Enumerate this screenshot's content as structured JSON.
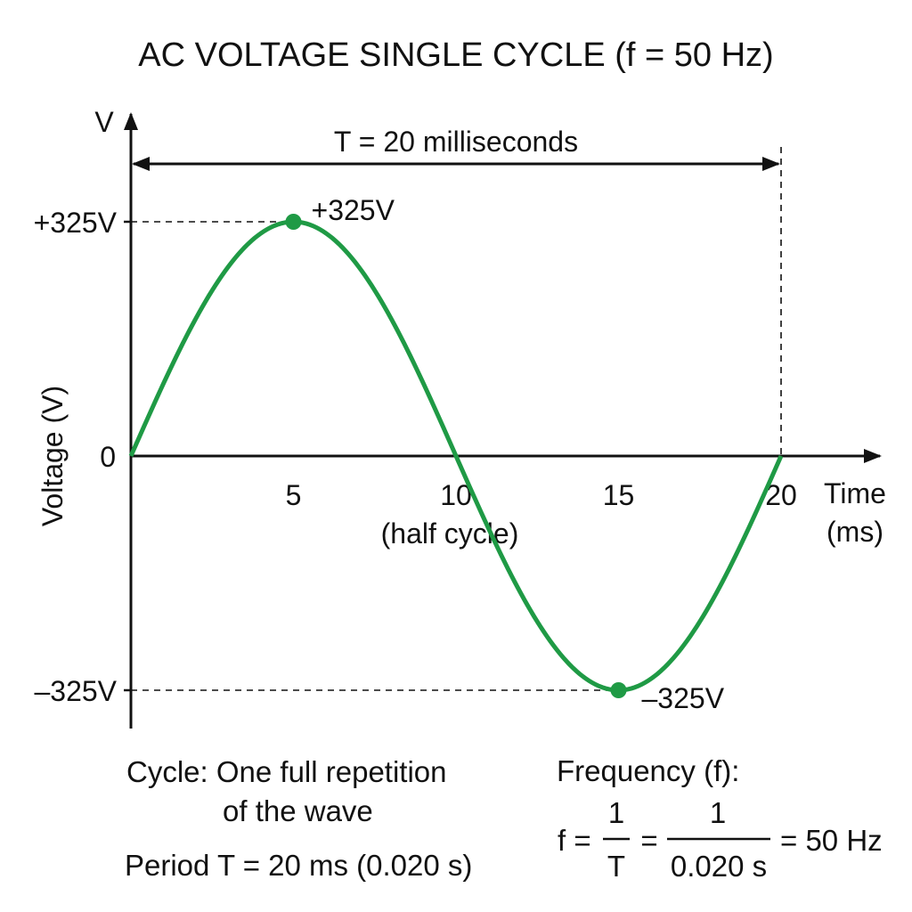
{
  "chart_data": {
    "type": "line",
    "title": "AC VOLTAGE SINGLE CYCLE (f = 50 Hz)",
    "ylabel": "Voltage (V)",
    "y_axis_symbol": "V",
    "xlabel_line1": "Time",
    "xlabel_line2": "(ms)",
    "xlim": [
      0,
      20
    ],
    "ylim": [
      -325,
      325
    ],
    "x_ticks": [
      {
        "value": 5,
        "label": "5"
      },
      {
        "value": 10,
        "label": "10"
      },
      {
        "value": 15,
        "label": "15"
      },
      {
        "value": 20,
        "label": "20"
      }
    ],
    "half_cycle_label": "(half cycle)",
    "y_ticks": [
      {
        "value": 325,
        "label": "+325V"
      },
      {
        "value": 0,
        "label": "0"
      },
      {
        "value": -325,
        "label": "–325V"
      }
    ],
    "series": [
      {
        "color": "#1f9a45",
        "amplitude": 325,
        "period_ms": 20,
        "x": [
          0,
          2.5,
          5,
          7.5,
          10,
          12.5,
          15,
          17.5,
          20
        ],
        "y": [
          0,
          230,
          325,
          230,
          0,
          -230,
          -325,
          -230,
          0
        ]
      }
    ],
    "annotations": [
      {
        "x": 5,
        "y": 325,
        "label": "+325V"
      },
      {
        "x": 15,
        "y": -325,
        "label": "–325V"
      }
    ],
    "period_label": "T = 20 milliseconds",
    "grid": false
  },
  "notes": {
    "cycle_line1": "Cycle: One full repetition",
    "cycle_line2": "of the wave",
    "period": "Period T = 20 ms (0.020 s)",
    "frequency_heading": "Frequency (f):",
    "f_prefix": "f =",
    "frac1_num": "1",
    "frac1_den": "T",
    "equals": "=",
    "frac2_num": "1",
    "frac2_den": "0.020 s",
    "result": "= 50 Hz"
  }
}
